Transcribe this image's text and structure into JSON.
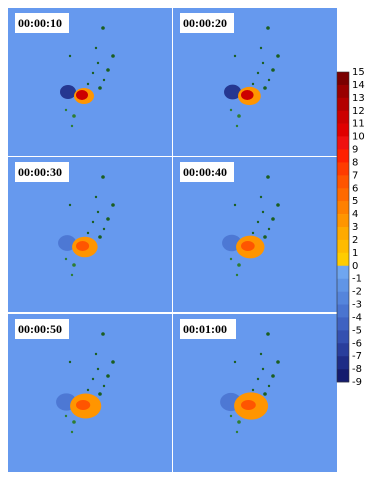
{
  "panels": [
    {
      "time": "00:00:10"
    },
    {
      "time": "00:00:20"
    },
    {
      "time": "00:00:30"
    },
    {
      "time": "00:00:40"
    },
    {
      "time": "00:00:50"
    },
    {
      "time": "00:01:00"
    }
  ],
  "colorbar": {
    "ticks": [
      15,
      14,
      13,
      12,
      11,
      10,
      9,
      8,
      7,
      6,
      5,
      4,
      3,
      2,
      1,
      0,
      -1,
      -2,
      -3,
      -4,
      -5,
      -6,
      -7,
      -8,
      -9
    ],
    "colors": [
      "#7a0000",
      "#990000",
      "#b30000",
      "#cc0000",
      "#e00000",
      "#f01010",
      "#ff2000",
      "#ff3c00",
      "#ff5500",
      "#ff6a00",
      "#ff8000",
      "#ff9500",
      "#ffaa00",
      "#ffbb00",
      "#ffcc00",
      "#6fa6f0",
      "#6095e6",
      "#5585dc",
      "#4a74d0",
      "#3f62c2",
      "#3450b0",
      "#293e9c",
      "#1e2c86",
      "#141b6e"
    ]
  }
}
